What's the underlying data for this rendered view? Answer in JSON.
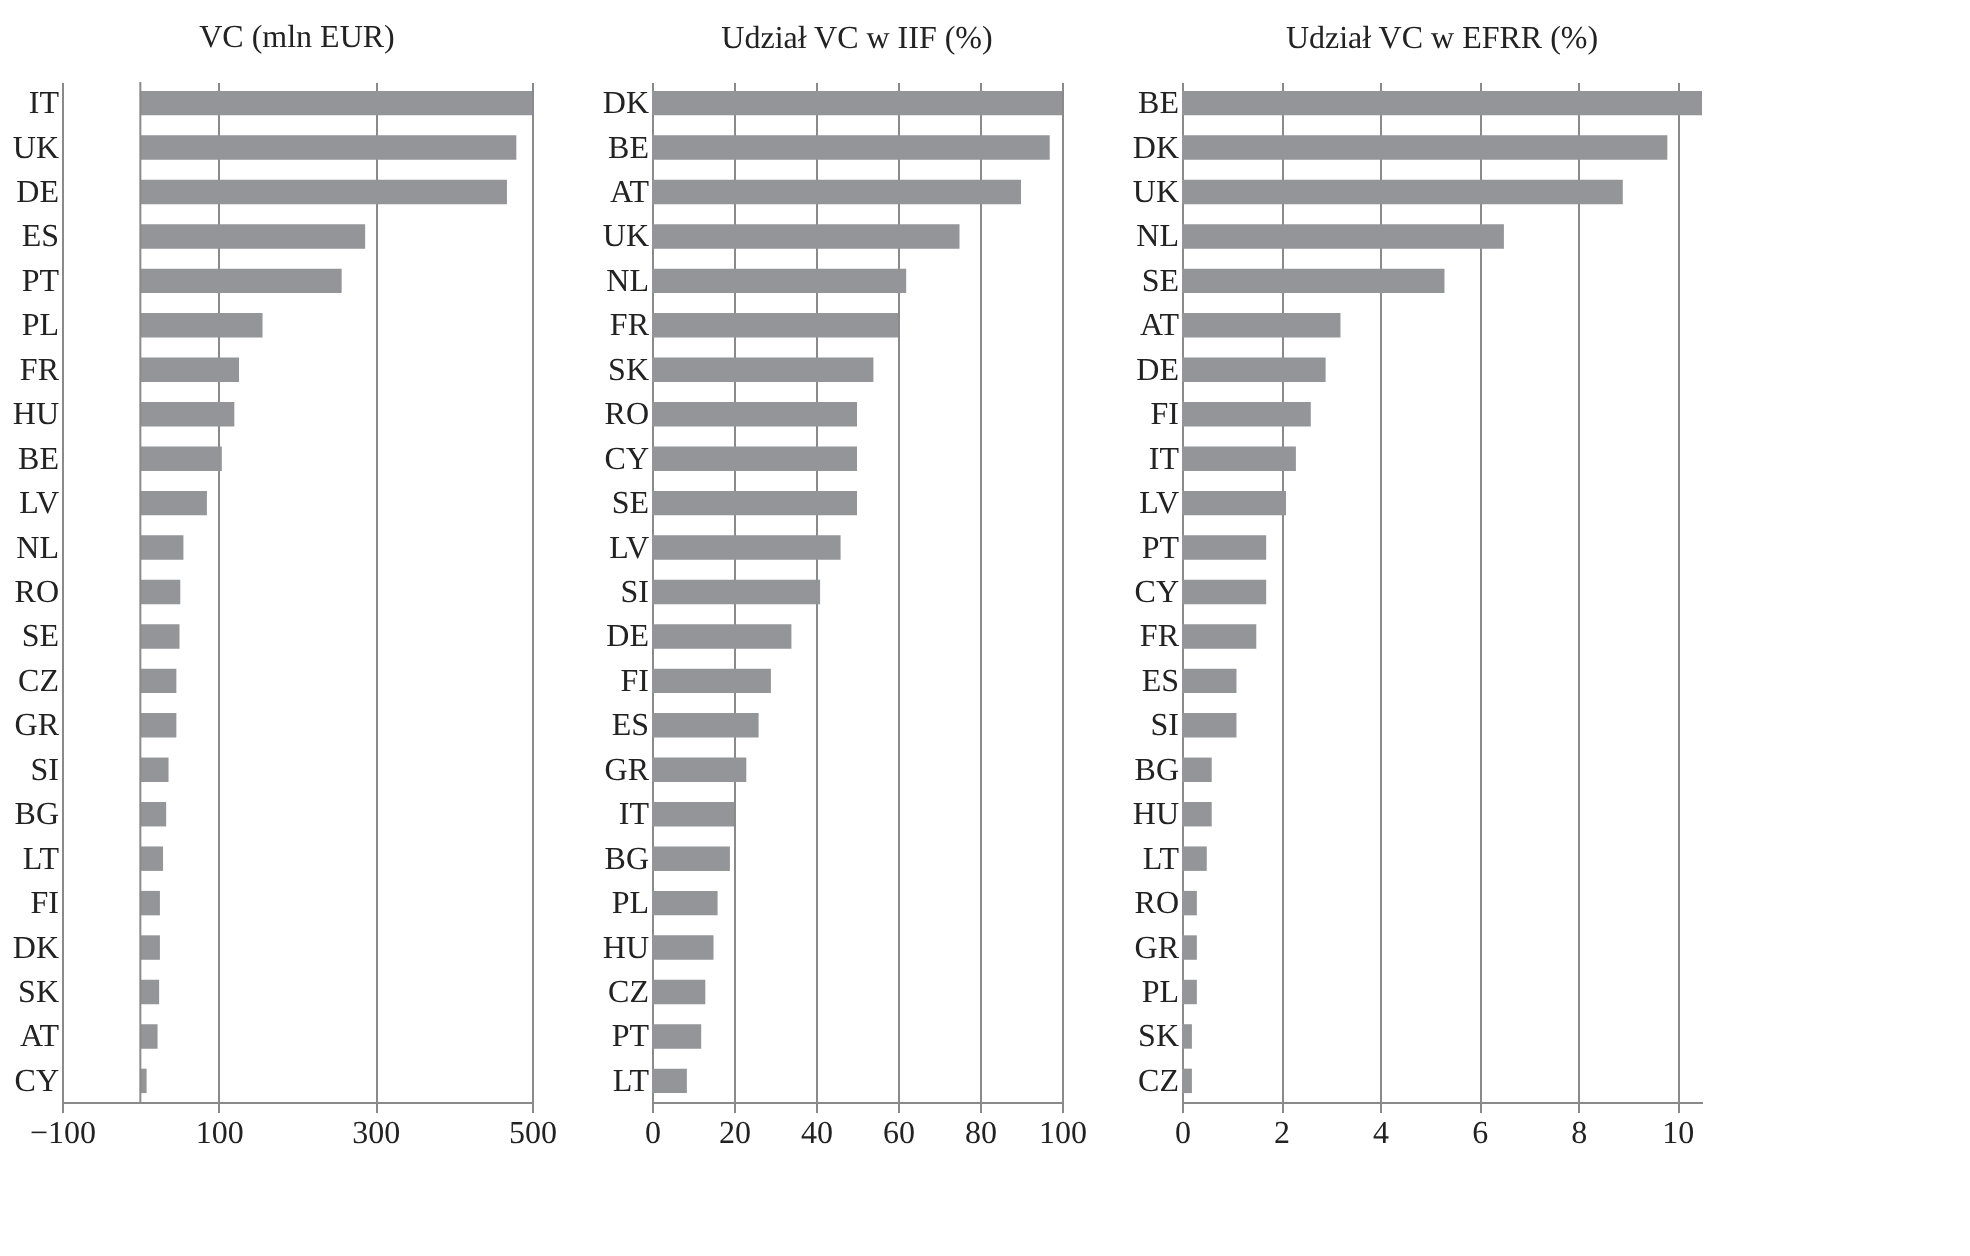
{
  "chart_data": [
    {
      "type": "bar",
      "orientation": "horizontal",
      "title": "VC (mln EUR)",
      "color": "#939598",
      "grid": "x",
      "categories": [
        "IT",
        "UK",
        "DE",
        "ES",
        "PT",
        "PL",
        "FR",
        "HU",
        "BE",
        "LV",
        "NL",
        "RO",
        "SE",
        "CZ",
        "GR",
        "SI",
        "BG",
        "LT",
        "FI",
        "DK",
        "SK",
        "AT",
        "CY"
      ],
      "values": [
        500,
        480,
        468,
        287,
        257,
        156,
        126,
        120,
        104,
        85,
        55,
        51,
        50,
        46,
        46,
        36,
        33,
        29,
        25,
        25,
        24,
        22,
        8
      ],
      "xlim": [
        -100,
        500
      ],
      "xticks": [
        -100,
        100,
        300,
        500
      ]
    },
    {
      "type": "bar",
      "orientation": "horizontal",
      "title": "Udział VC w IIF (%)",
      "color": "#939598",
      "grid": "x",
      "categories": [
        "DK",
        "BE",
        "AT",
        "UK",
        "NL",
        "FR",
        "SK",
        "RO",
        "CY",
        "SE",
        "LV",
        "SI",
        "DE",
        "FI",
        "ES",
        "GR",
        "IT",
        "BG",
        "PL",
        "HU",
        "CZ",
        "PT",
        "LT"
      ],
      "values": [
        100,
        97,
        90,
        75,
        62,
        60,
        54,
        50,
        50,
        50,
        46,
        41,
        34,
        29,
        26,
        23,
        20,
        19,
        16,
        15,
        13,
        12,
        8.5
      ],
      "xlim": [
        0,
        100
      ],
      "xticks": [
        0,
        20,
        40,
        60,
        80,
        100
      ]
    },
    {
      "type": "bar",
      "orientation": "horizontal",
      "title": "Udział VC w EFRR (%)",
      "color": "#939598",
      "grid": "x",
      "categories": [
        "BE",
        "DK",
        "UK",
        "NL",
        "SE",
        "AT",
        "DE",
        "FI",
        "IT",
        "LV",
        "PT",
        "CY",
        "FR",
        "ES",
        "SI",
        "BG",
        "HU",
        "LT",
        "RO",
        "GR",
        "PL",
        "SK",
        "CZ"
      ],
      "values": [
        10.5,
        9.8,
        8.9,
        6.5,
        5.3,
        3.2,
        2.9,
        2.6,
        2.3,
        2.1,
        1.7,
        1.7,
        1.5,
        1.1,
        1.1,
        0.6,
        0.6,
        0.5,
        0.3,
        0.3,
        0.3,
        0.2,
        0.2
      ],
      "xlim": [
        0,
        10.5
      ],
      "xticks": [
        0,
        2,
        4,
        6,
        8,
        10
      ]
    }
  ]
}
